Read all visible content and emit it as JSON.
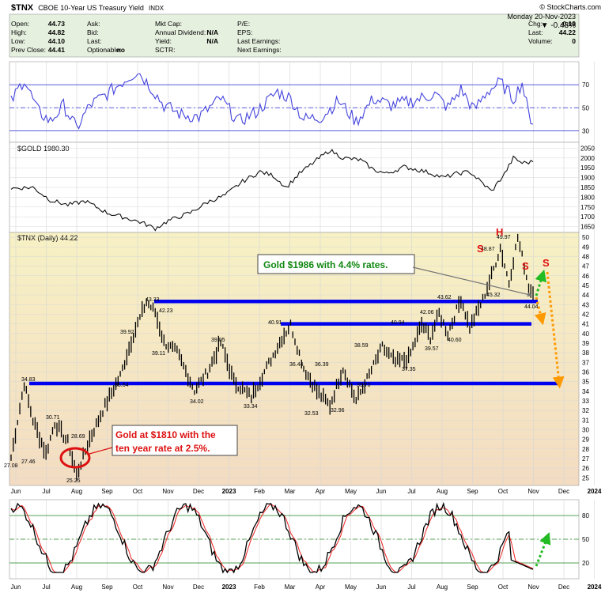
{
  "header": {
    "symbol": "$TNX",
    "name": "CBOE 10-Year US Treasury Yield",
    "exchange": "INDX",
    "watermark": "© StockCharts.com",
    "date": "Monday 20-Nov-2023",
    "change_pct": "-0.43%",
    "quote_rows": [
      [
        [
          "Open:",
          "44.73"
        ],
        [
          "Ask:",
          ""
        ],
        [
          "Mkt Cap:",
          ""
        ],
        [
          "P/E:",
          ""
        ],
        [
          "Chg:",
          "-0.19"
        ]
      ],
      [
        [
          "High:",
          "44.82"
        ],
        [
          "Bid:",
          ""
        ],
        [
          "Annual Dividend:",
          "N/A"
        ],
        [
          "EPS:",
          ""
        ],
        [
          "Last:",
          "44.22"
        ]
      ],
      [
        [
          "Low:",
          "44.10"
        ],
        [
          "Last:",
          ""
        ],
        [
          "Yield:",
          "N/A"
        ],
        [
          "Last Earnings:",
          ""
        ],
        [
          "Volume:",
          "0"
        ]
      ],
      [
        [
          "Prev Close:",
          "44.41"
        ],
        [
          "Optionable:",
          "no"
        ],
        [
          "SCTR:",
          ""
        ],
        [
          "Next Earnings:",
          ""
        ],
        [
          "",
          ""
        ]
      ]
    ]
  },
  "colors": {
    "header_bg": "#e6f0df",
    "main_bg_top": "#f7f1c4",
    "main_bg_bottom": "#f3dcc2",
    "rsi_line": "#4444dd",
    "support_line": "#0000ee",
    "annotation_green": "#118811",
    "annotation_red": "#dd1111",
    "arrow_orange": "#ff9900",
    "arrow_green": "#22bb22"
  },
  "rsi_panel": {
    "ticks": [
      "70",
      "50",
      "30"
    ]
  },
  "gold_panel": {
    "label": "$GOLD 1980.30",
    "ticks": [
      "2050",
      "2000",
      "1950",
      "1900",
      "1850",
      "1800",
      "1750",
      "1700",
      "1650"
    ]
  },
  "main_panel": {
    "label": "$TNX (Daily) 44.22",
    "ticks": [
      "50",
      "49",
      "48",
      "47",
      "46",
      "45",
      "44",
      "43",
      "42",
      "41",
      "40",
      "39",
      "38",
      "37",
      "36",
      "35",
      "34",
      "33",
      "32",
      "31",
      "30",
      "29",
      "28",
      "27",
      "26",
      "25"
    ]
  },
  "stoch_panel": {
    "ticks": [
      "80",
      "50",
      "20"
    ]
  },
  "x_axis": {
    "labels": [
      "Jun",
      "Jul",
      "Aug",
      "Sep",
      "Oct",
      "Nov",
      "Dec",
      "2023",
      "Feb",
      "Mar",
      "Apr",
      "May",
      "Jun",
      "Jul",
      "Aug",
      "Sep",
      "Oct",
      "Nov",
      "Dec",
      "2024"
    ]
  },
  "annotations": {
    "gold_1810": [
      "Gold at $1810 with the",
      "ten year rate at 2.5%."
    ],
    "gold_1986": "Gold $1986 with 4.4% rates.",
    "hs_labels": [
      "S",
      "H",
      "S",
      "S"
    ]
  },
  "chart_data": {
    "type": "line",
    "title": "$TNX CBOE 10-Year US Treasury Yield INDX",
    "series": [
      {
        "name": "$TNX (Daily)",
        "last": 44.22
      },
      {
        "name": "$GOLD",
        "last": 1980.3
      }
    ],
    "tnx_price_labels": [
      {
        "date": "2022-06",
        "value": 27.08
      },
      {
        "date": "2022-06",
        "value": 34.83
      },
      {
        "date": "2022-07",
        "value": 27.46
      },
      {
        "date": "2022-07",
        "value": 30.71
      },
      {
        "date": "2022-08",
        "value": 28.69
      },
      {
        "date": "2022-08",
        "value": 25.25
      },
      {
        "date": "2022-09",
        "value": 35.64
      },
      {
        "date": "2022-10",
        "value": 39.92
      },
      {
        "date": "2022-10",
        "value": 43.33
      },
      {
        "date": "2022-10",
        "value": 42.23
      },
      {
        "date": "2022-10",
        "value": 39.11
      },
      {
        "date": "2022-12",
        "value": 34.02
      },
      {
        "date": "2023-01",
        "value": 39.05
      },
      {
        "date": "2023-02",
        "value": 33.34
      },
      {
        "date": "2023-03",
        "value": 40.91
      },
      {
        "date": "2023-03",
        "value": 36.44
      },
      {
        "date": "2023-04",
        "value": 32.53
      },
      {
        "date": "2023-04",
        "value": 36.39
      },
      {
        "date": "2023-05",
        "value": 32.96
      },
      {
        "date": "2023-05",
        "value": 35.7
      },
      {
        "date": "2023-06",
        "value": 38.59
      },
      {
        "date": "2023-07",
        "value": 40.94
      },
      {
        "date": "2023-07",
        "value": 37.35
      },
      {
        "date": "2023-08",
        "value": 42.06
      },
      {
        "date": "2023-08",
        "value": 39.57
      },
      {
        "date": "2023-08",
        "value": 43.62
      },
      {
        "date": "2023-09",
        "value": 40.6
      },
      {
        "date": "2023-10",
        "value": 48.87
      },
      {
        "date": "2023-10",
        "value": 45.32
      },
      {
        "date": "2023-10",
        "value": 49.97
      },
      {
        "date": "2023-11",
        "value": 44.04
      }
    ],
    "support_levels": [
      43.33,
      41.0,
      34.8
    ],
    "tnx_ylim": [
      25,
      50.5
    ],
    "gold_ylim": [
      1620,
      2080
    ],
    "rsi_ylim": [
      20,
      90
    ],
    "stoch_ylim": [
      0,
      100
    ],
    "grid": true
  }
}
